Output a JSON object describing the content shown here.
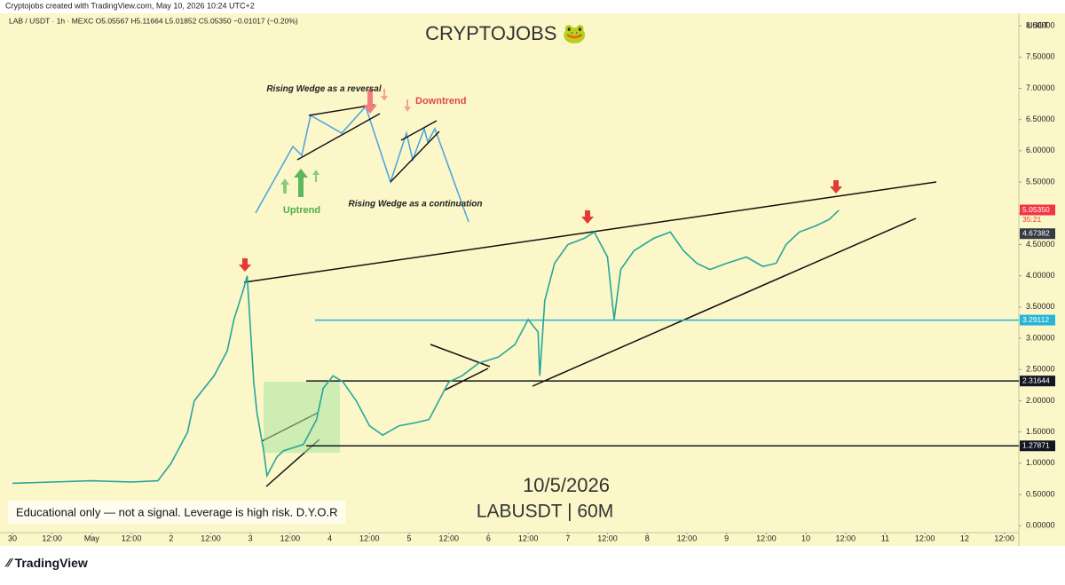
{
  "chart_data": {
    "type": "line",
    "credit": "Cryptojobs created with TradingView.com, May 10, 2026 10:24 UTC+2",
    "header": "LAB / USDT · 1h · MEXC  O5.05567  H5.11664  L5.01852  C5.05350  −0.01017 (−0.20%)",
    "title": "CRYPTOJOBS 🐸",
    "currency": "USDT",
    "annotations": {
      "wedge_reversal": "Rising Wedge as a reversal",
      "downtrend": "Downtrend",
      "uptrend": "Uptrend",
      "wedge_continuation": "Rising Wedge as a continuation",
      "date": "10/5/2026",
      "symbol": "LABUSDT | 60M",
      "disclaimer": "Educational only — not a signal. Leverage is high risk. D.Y.O.R"
    },
    "brand": "TradingView",
    "countdown": "35:21",
    "series": [
      {
        "name": "LABUSDT",
        "color": "#26a69a",
        "x": [
          0,
          12,
          24,
          36,
          44,
          48,
          53,
          55,
          61,
          65,
          67,
          70,
          71,
          73,
          74,
          76,
          77,
          80,
          82,
          88,
          92,
          94,
          97,
          100,
          104,
          108,
          112,
          117,
          122,
          126,
          129,
          132,
          136,
          141,
          147,
          152,
          156,
          159,
          159.5,
          161,
          164,
          168,
          173,
          176,
          180,
          182,
          184,
          188,
          194,
          199,
          203,
          207,
          211,
          216,
          222,
          227,
          231,
          234,
          238,
          243,
          247,
          250
        ],
        "values": [
          0.68,
          0.7,
          0.72,
          0.7,
          0.72,
          1.0,
          1.5,
          2.0,
          2.4,
          2.8,
          3.3,
          3.8,
          4.0,
          2.3,
          1.8,
          1.2,
          0.8,
          1.1,
          1.2,
          1.3,
          1.7,
          2.2,
          2.4,
          2.3,
          2.0,
          1.6,
          1.45,
          1.6,
          1.65,
          1.7,
          2.0,
          2.3,
          2.4,
          2.6,
          2.7,
          2.9,
          3.3,
          3.1,
          2.4,
          3.6,
          4.2,
          4.5,
          4.6,
          4.7,
          4.3,
          3.3,
          4.1,
          4.4,
          4.6,
          4.7,
          4.4,
          4.2,
          4.1,
          4.2,
          4.3,
          4.15,
          4.2,
          4.5,
          4.7,
          4.8,
          4.9,
          5.05
        ]
      }
    ],
    "levels": [
      {
        "value": 5.0535,
        "label": "5.05350",
        "color": "#f23645"
      },
      {
        "value": 4.67382,
        "label": "4.67382",
        "color": "#363a45"
      },
      {
        "value": 3.29112,
        "label": "3.29112",
        "color": "#26b5d6",
        "line": true
      },
      {
        "value": 2.31644,
        "label": "2.31644",
        "color": "#131722",
        "line": true
      },
      {
        "value": 1.27871,
        "label": "1.27871",
        "color": "#131722",
        "line": true
      }
    ],
    "xlim": [
      -1.6,
      303.6
    ],
    "ylim": [
      -0.11,
      8.2
    ],
    "xticks": [
      {
        "value": 0,
        "label": "30"
      },
      {
        "value": 12,
        "label": "12:00"
      },
      {
        "value": 24,
        "label": "May"
      },
      {
        "value": 36,
        "label": "12:00"
      },
      {
        "value": 48,
        "label": "2"
      },
      {
        "value": 60,
        "label": "12:00"
      },
      {
        "value": 72,
        "label": "3"
      },
      {
        "value": 84,
        "label": "12:00"
      },
      {
        "value": 96,
        "label": "4"
      },
      {
        "value": 108,
        "label": "12:00"
      },
      {
        "value": 120,
        "label": "5"
      },
      {
        "value": 132,
        "label": "12:00"
      },
      {
        "value": 144,
        "label": "6"
      },
      {
        "value": 156,
        "label": "12:00"
      },
      {
        "value": 168,
        "label": "7"
      },
      {
        "value": 180,
        "label": "12:00"
      },
      {
        "value": 192,
        "label": "8"
      },
      {
        "value": 204,
        "label": "12:00"
      },
      {
        "value": 216,
        "label": "9"
      },
      {
        "value": 228,
        "label": "12:00"
      },
      {
        "value": 240,
        "label": "10"
      },
      {
        "value": 252,
        "label": "12:00"
      },
      {
        "value": 264,
        "label": "11"
      },
      {
        "value": 276,
        "label": "12:00"
      },
      {
        "value": 288,
        "label": "12"
      },
      {
        "value": 300,
        "label": "12:00"
      }
    ],
    "yticks": [
      {
        "value": 0,
        "label": "0.00000"
      },
      {
        "value": 0.5,
        "label": "0.50000"
      },
      {
        "value": 1,
        "label": "1.00000"
      },
      {
        "value": 1.5,
        "label": "1.50000"
      },
      {
        "value": 2,
        "label": "2.00000"
      },
      {
        "value": 2.5,
        "label": "2.50000"
      },
      {
        "value": 3,
        "label": "3.00000"
      },
      {
        "value": 3.5,
        "label": "3.50000"
      },
      {
        "value": 4,
        "label": "4.00000"
      },
      {
        "value": 4.5,
        "label": "4.50000"
      },
      {
        "value": 5,
        "label": "5.00000"
      },
      {
        "value": 5.5,
        "label": "5.50000"
      },
      {
        "value": 6,
        "label": "6.00000"
      },
      {
        "value": 6.5,
        "label": "6.50000"
      },
      {
        "value": 7,
        "label": "7.00000"
      },
      {
        "value": 7.5,
        "label": "7.50000"
      },
      {
        "value": 8,
        "label": "8.00000"
      }
    ],
    "grid": false
  }
}
